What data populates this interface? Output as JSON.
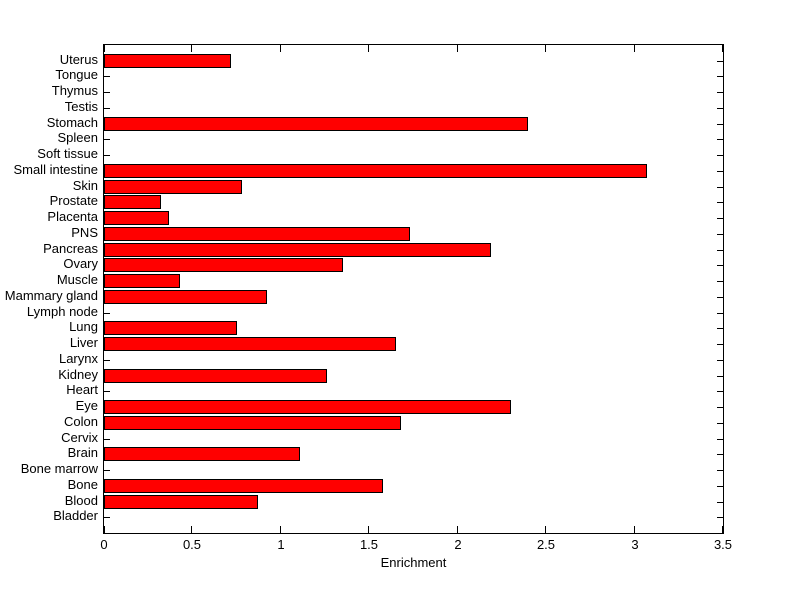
{
  "chart_data": {
    "type": "bar",
    "orientation": "horizontal",
    "title": "",
    "xlabel": "Enrichment",
    "ylabel": "",
    "xlim": [
      0,
      3.5
    ],
    "x_ticks": [
      0,
      0.5,
      1,
      1.5,
      2,
      2.5,
      3,
      3.5
    ],
    "x_tick_labels": [
      "0",
      "0.5",
      "1",
      "1.5",
      "2",
      "2.5",
      "3",
      "3.5"
    ],
    "categories": [
      "Uterus",
      "Tongue",
      "Thymus",
      "Testis",
      "Stomach",
      "Spleen",
      "Soft tissue",
      "Small intestine",
      "Skin",
      "Prostate",
      "Placenta",
      "PNS",
      "Pancreas",
      "Ovary",
      "Muscle",
      "Mammary gland",
      "Lymph node",
      "Lung",
      "Liver",
      "Larynx",
      "Kidney",
      "Heart",
      "Eye",
      "Colon",
      "Cervix",
      "Brain",
      "Bone marrow",
      "Bone",
      "Blood",
      "Bladder"
    ],
    "values": [
      0.72,
      0,
      0,
      0,
      2.4,
      0,
      0,
      3.07,
      0.78,
      0.32,
      0.37,
      1.73,
      2.19,
      1.35,
      0.43,
      0.92,
      0,
      0.75,
      1.65,
      0,
      1.26,
      0,
      2.3,
      1.68,
      0,
      1.11,
      0,
      1.58,
      0.87,
      0
    ],
    "legend": null,
    "grid": false,
    "bar_color": "#ff0000",
    "bar_edge_color": "#000000",
    "axis_color": "#000000",
    "background_color": "#ffffff"
  }
}
